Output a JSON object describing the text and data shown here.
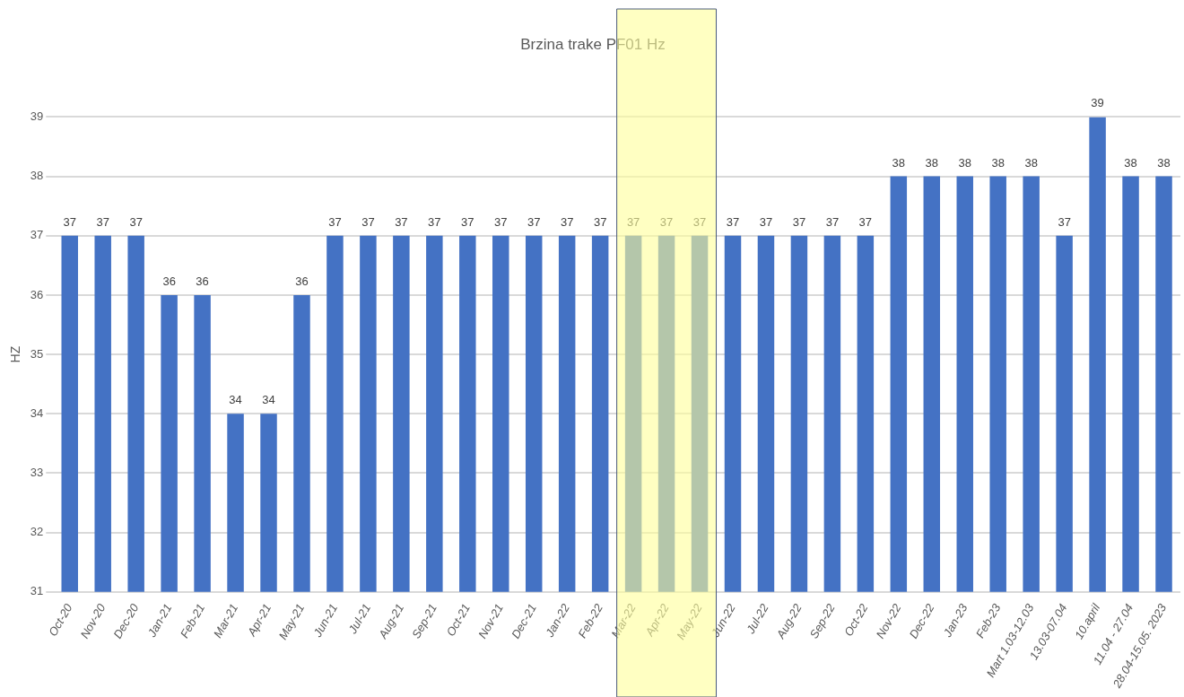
{
  "chart_data": {
    "type": "bar",
    "title": "Brzina trake PF01 Hz",
    "ylabel": "HZ",
    "categories": [
      "Oct-20",
      "Nov-20",
      "Dec-20",
      "Jan-21",
      "Feb-21",
      "Mar-21",
      "Apr-21",
      "May-21",
      "Jun-21",
      "Jul-21",
      "Aug-21",
      "Sep-21",
      "Oct-21",
      "Nov-21",
      "Dec-21",
      "Jan-22",
      "Feb-22",
      "Mar-22",
      "Apr-22",
      "May-22",
      "Jun-22",
      "Jul-22",
      "Aug-22",
      "Sep-22",
      "Oct-22",
      "Nov-22",
      "Dec-22",
      "Jan-23",
      "Feb-23",
      "Mart 1.03-12.03",
      "13.03-07.04",
      "10.april",
      "11.04 - 27.04",
      "28.04-15.05. 2023"
    ],
    "values": [
      37,
      37,
      37,
      36,
      36,
      34,
      34,
      36,
      37,
      37,
      37,
      37,
      37,
      37,
      37,
      37,
      37,
      37,
      37,
      37,
      37,
      37,
      37,
      37,
      37,
      38,
      38,
      38,
      38,
      38,
      37,
      39,
      38,
      38
    ],
    "color": "#4472c4",
    "ylim": [
      31,
      39
    ],
    "yticks": [
      31,
      32,
      33,
      34,
      35,
      36,
      37,
      38,
      39
    ],
    "grid": "y",
    "data_labels": true,
    "bands": [
      {
        "axis": "x",
        "from": "Mar-22",
        "to": "May-22",
        "color": "#ffff99"
      }
    ]
  }
}
